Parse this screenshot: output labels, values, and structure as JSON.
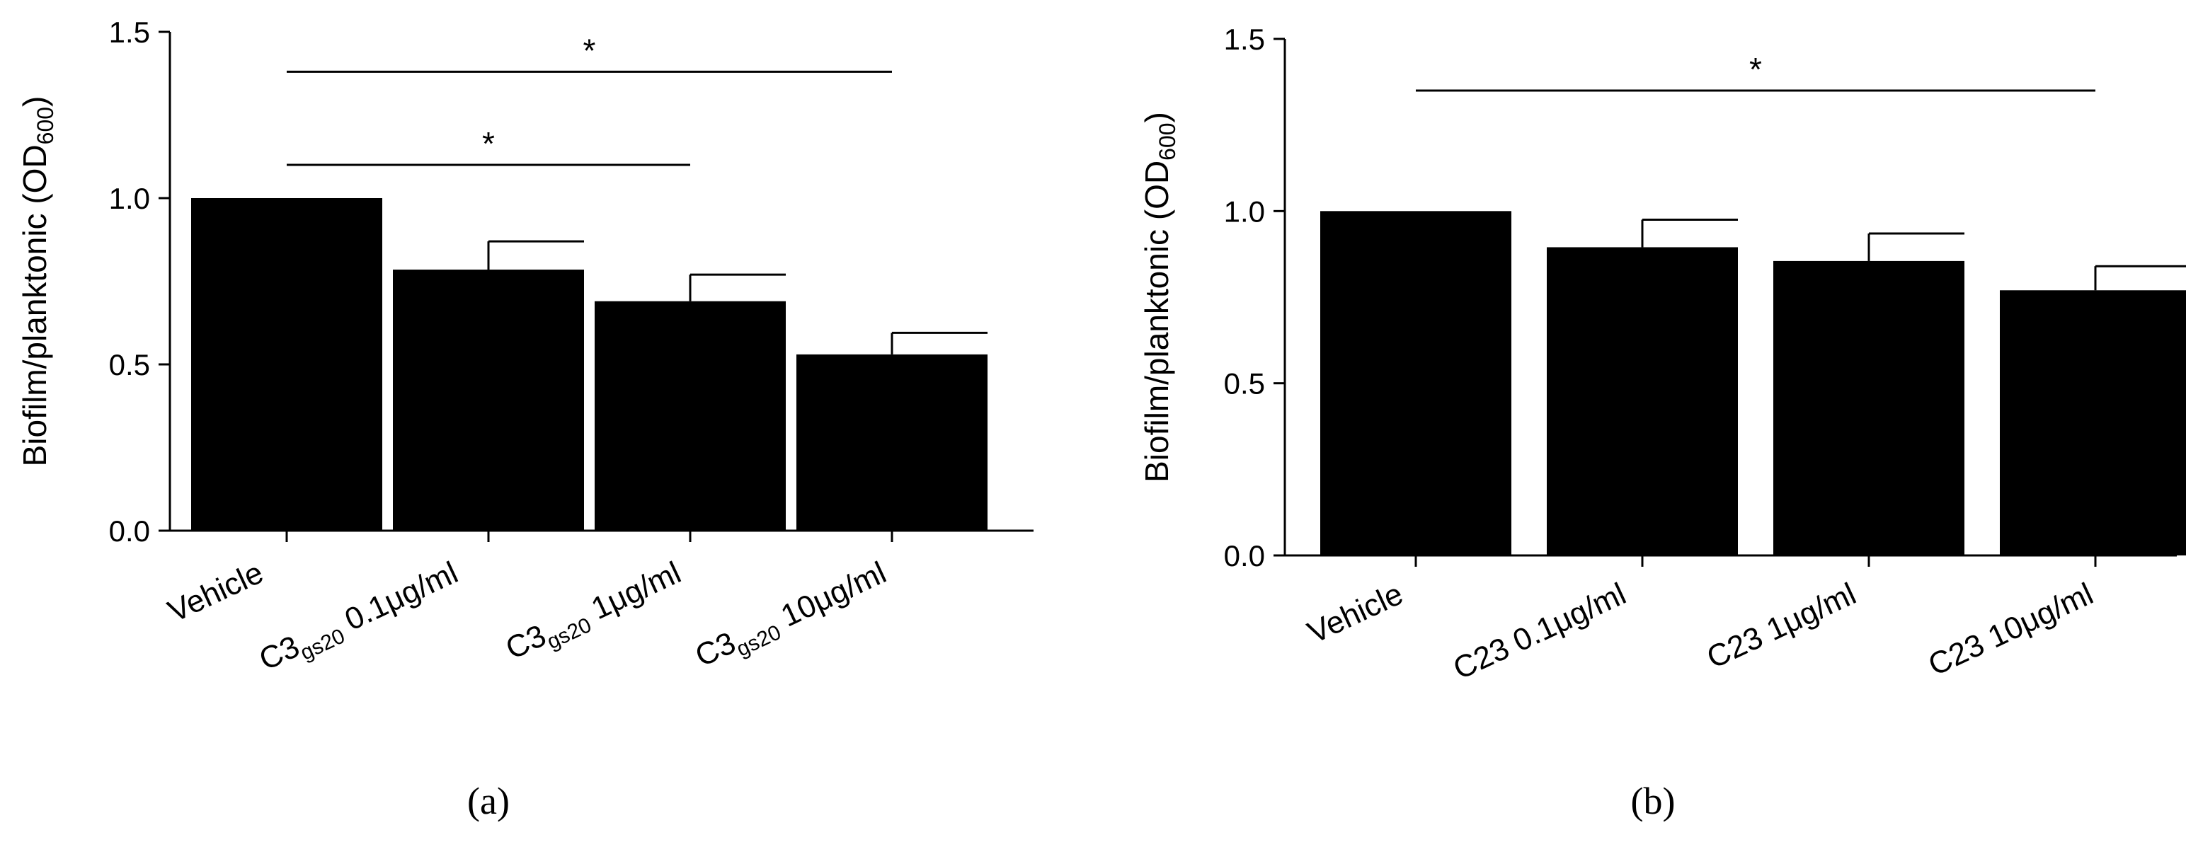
{
  "chart_data": [
    {
      "type": "bar",
      "panel_label": "(a)",
      "title": "",
      "ylabel": "Biofilm/planktonic (OD",
      "ylabel_sub": "600",
      "ylabel_close": ")",
      "ylim": [
        0,
        1.5
      ],
      "yticks": [
        "0.0",
        "0.5",
        "1.0",
        "1.5"
      ],
      "categories": [
        {
          "base": "Vehicle",
          "sub": "",
          "rest": ""
        },
        {
          "base": "C3",
          "sub": "gs20",
          "rest": " 0.1μg/ml"
        },
        {
          "base": "C3",
          "sub": "gs20",
          "rest": " 1μg/ml"
        },
        {
          "base": "C3",
          "sub": "gs20",
          "rest": " 10μg/ml"
        }
      ],
      "values": [
        1.0,
        0.785,
        0.69,
        0.53
      ],
      "errors": [
        0.0,
        0.085,
        0.08,
        0.065
      ],
      "significance": [
        {
          "from": 0,
          "to": 2,
          "label": "*",
          "level": 1.1
        },
        {
          "from": 0,
          "to": 3,
          "label": "*",
          "level": 1.38
        }
      ],
      "bar_color": "#000000"
    },
    {
      "type": "bar",
      "panel_label": "(b)",
      "title": "",
      "ylabel": "Biofilm/planktonic (OD",
      "ylabel_sub": "600",
      "ylabel_close": ")",
      "ylim": [
        0,
        1.5
      ],
      "yticks": [
        "0.0",
        "0.5",
        "1.0",
        "1.5"
      ],
      "categories": [
        {
          "base": "Vehicle",
          "sub": "",
          "rest": ""
        },
        {
          "base": "C23 0.1μg/ml",
          "sub": "",
          "rest": ""
        },
        {
          "base": "C23 1μg/ml",
          "sub": "",
          "rest": ""
        },
        {
          "base": "C23 10μg/ml",
          "sub": "",
          "rest": ""
        }
      ],
      "values": [
        1.0,
        0.895,
        0.855,
        0.77
      ],
      "errors": [
        0.0,
        0.08,
        0.08,
        0.07
      ],
      "significance": [
        {
          "from": 0,
          "to": 3,
          "label": "*",
          "level": 1.35
        }
      ],
      "bar_color": "#000000"
    }
  ]
}
